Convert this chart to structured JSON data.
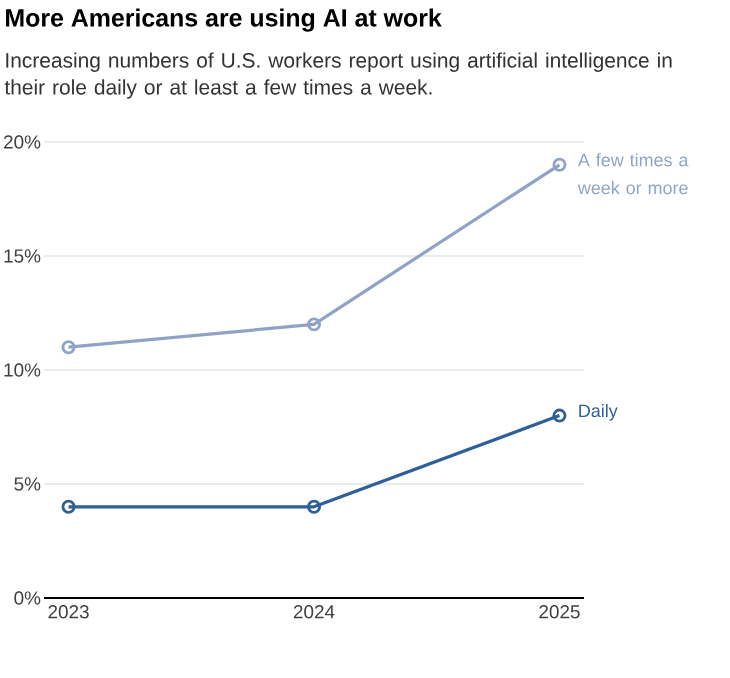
{
  "chart_data": {
    "type": "line",
    "title": "More Americans are using AI at work",
    "subtitle": "Increasing numbers of U.S. workers report using artificial intelligence in their role daily or at least a few times a week.",
    "x": [
      2023,
      2024,
      2025
    ],
    "xlim": [
      2022.9,
      2025.1
    ],
    "xticks": [
      2023,
      2024,
      2025
    ],
    "ylim": [
      0,
      20
    ],
    "yticks": [
      {
        "value": 0,
        "label": "0%"
      },
      {
        "value": 5,
        "label": "5%"
      },
      {
        "value": 10,
        "label": "10%"
      },
      {
        "value": 15,
        "label": "15%"
      },
      {
        "value": 20,
        "label": "20%"
      }
    ],
    "series": [
      {
        "name": "A few times a week or more",
        "color": "#8fa3c7",
        "values": [
          11,
          12,
          19
        ]
      },
      {
        "name": "Daily",
        "color": "#2e5f98",
        "values": [
          4,
          4,
          8
        ]
      }
    ],
    "grid": "y",
    "marker": "circle",
    "line_style": "solid",
    "legend": false
  }
}
